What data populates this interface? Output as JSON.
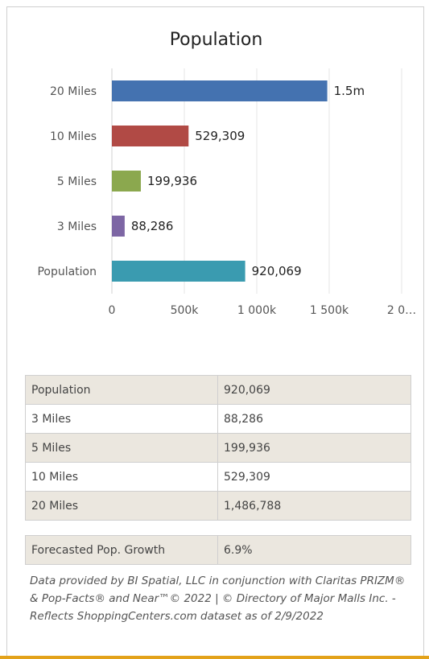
{
  "chart_data": {
    "type": "bar",
    "orientation": "horizontal",
    "title": "Population",
    "categories": [
      "20 Miles",
      "10 Miles",
      "5 Miles",
      "3 Miles",
      "Population"
    ],
    "values": [
      1486788,
      529309,
      199936,
      88286,
      920069
    ],
    "data_labels": [
      "1.5m",
      "529,309",
      "199,936",
      "88,286",
      "920,069"
    ],
    "colors": [
      "#4472b0",
      "#b14a45",
      "#8ba84e",
      "#7d66a4",
      "#3a9bb0"
    ],
    "xlim": [
      0,
      2000000
    ],
    "x_ticks": [
      0,
      500000,
      1000000,
      1500000,
      2000000
    ],
    "x_tick_labels": [
      "0",
      "500k",
      "1 000k",
      "1 500k",
      "2 0…"
    ],
    "grid": true,
    "legend": "none"
  },
  "table": {
    "rows": [
      {
        "label": "Population",
        "value": "920,069"
      },
      {
        "label": "3 Miles",
        "value": "88,286"
      },
      {
        "label": "5 Miles",
        "value": "199,936"
      },
      {
        "label": "10 Miles",
        "value": "529,309"
      },
      {
        "label": "20 Miles",
        "value": "1,486,788"
      }
    ]
  },
  "growth": {
    "label": "Forecasted Pop. Growth",
    "value": "6.9%"
  },
  "source_note": "Data provided by BI Spatial, LLC in conjunction with Claritas PRIZM® & Pop-Facts® and Near™© 2022 | © Directory of Major Malls Inc. - Reflects ShoppingCenters.com dataset as of 2/9/2022"
}
